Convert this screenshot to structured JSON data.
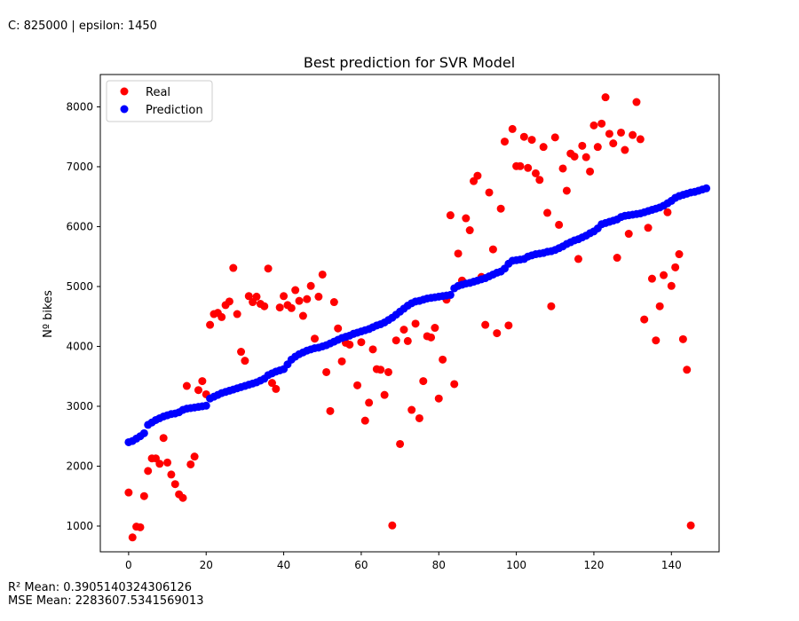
{
  "header": {
    "params_text": "C: 825000 | epsilon: 1450"
  },
  "footer": {
    "r2_text": "R² Mean: 0.3905140324306126",
    "mse_text": "MSE Mean: 2283607.5341569013"
  },
  "chart_data": {
    "type": "scatter",
    "title": "Best prediction for SVR Model",
    "xlabel": "",
    "ylabel": "Nº bikes",
    "xlim": [
      -7.3,
      152.3
    ],
    "ylim": [
      570,
      8540
    ],
    "xticks": [
      0,
      20,
      40,
      60,
      80,
      100,
      120,
      140
    ],
    "yticks": [
      1000,
      2000,
      3000,
      4000,
      5000,
      6000,
      7000,
      8000
    ],
    "grid": false,
    "legend_position": "top-left",
    "series": [
      {
        "name": "Real",
        "color": "#ff0000",
        "y": [
          1560,
          810,
          990,
          980,
          1500,
          1920,
          2130,
          2130,
          2040,
          2470,
          2060,
          1860,
          1700,
          1530,
          1470,
          3340,
          2030,
          2160,
          3270,
          3420,
          3200,
          4360,
          4540,
          4560,
          4490,
          4690,
          4750,
          5310,
          4540,
          3910,
          3760,
          4840,
          4740,
          4830,
          4710,
          4670,
          5300,
          3390,
          3290,
          4650,
          4840,
          4690,
          4640,
          4940,
          4760,
          4510,
          4790,
          5010,
          4130,
          4830,
          5200,
          3570,
          2920,
          4740,
          4300,
          3750,
          4060,
          4030,
          4210,
          3350,
          4070,
          2760,
          3060,
          3950,
          3620,
          3610,
          3190,
          3570,
          1010,
          4100,
          2370,
          4280,
          4090,
          2940,
          4380,
          2800,
          3420,
          4170,
          4150,
          4310,
          3130,
          3780,
          4780,
          6190,
          3370,
          5550,
          5100,
          6140,
          5940,
          6760,
          6850,
          5160,
          4360,
          6570,
          5620,
          4220,
          6300,
          7420,
          4350,
          7630,
          7010,
          7010,
          7500,
          6980,
          7450,
          6890,
          6780,
          7330,
          6230,
          4670,
          7490,
          6030,
          6970,
          6600,
          7220,
          7170,
          5460,
          7350,
          7160,
          6920,
          7690,
          7330,
          7720,
          8160,
          7550,
          7390,
          5480,
          7570,
          7280,
          5880,
          7530,
          8080,
          7460,
          4450,
          5980,
          5130,
          4100,
          4670,
          5190,
          6240,
          5010,
          5320,
          5540,
          4120,
          3610,
          1010
        ]
      },
      {
        "name": "Prediction",
        "color": "#0000ff",
        "y": [
          2400,
          2420,
          2460,
          2500,
          2550,
          2690,
          2730,
          2770,
          2800,
          2830,
          2850,
          2870,
          2880,
          2900,
          2940,
          2960,
          2970,
          2980,
          2990,
          3000,
          3010,
          3130,
          3160,
          3190,
          3220,
          3240,
          3260,
          3280,
          3300,
          3320,
          3340,
          3360,
          3380,
          3400,
          3430,
          3460,
          3520,
          3550,
          3580,
          3600,
          3620,
          3700,
          3780,
          3830,
          3870,
          3900,
          3930,
          3950,
          3970,
          3980,
          4000,
          4020,
          4050,
          4080,
          4110,
          4140,
          4160,
          4180,
          4210,
          4230,
          4250,
          4270,
          4290,
          4320,
          4350,
          4370,
          4400,
          4440,
          4480,
          4530,
          4580,
          4630,
          4680,
          4720,
          4750,
          4760,
          4780,
          4800,
          4810,
          4820,
          4830,
          4840,
          4850,
          4860,
          4970,
          5010,
          5030,
          5050,
          5060,
          5080,
          5100,
          5120,
          5140,
          5170,
          5200,
          5230,
          5250,
          5300,
          5380,
          5430,
          5440,
          5450,
          5460,
          5500,
          5520,
          5540,
          5550,
          5560,
          5580,
          5590,
          5610,
          5640,
          5670,
          5710,
          5740,
          5770,
          5790,
          5820,
          5850,
          5890,
          5920,
          5970,
          6040,
          6060,
          6080,
          6100,
          6120,
          6160,
          6180,
          6190,
          6200,
          6210,
          6220,
          6240,
          6260,
          6280,
          6300,
          6320,
          6350,
          6390,
          6430,
          6480,
          6510,
          6530,
          6550,
          6570,
          6580,
          6600,
          6620,
          6640
        ]
      }
    ]
  }
}
